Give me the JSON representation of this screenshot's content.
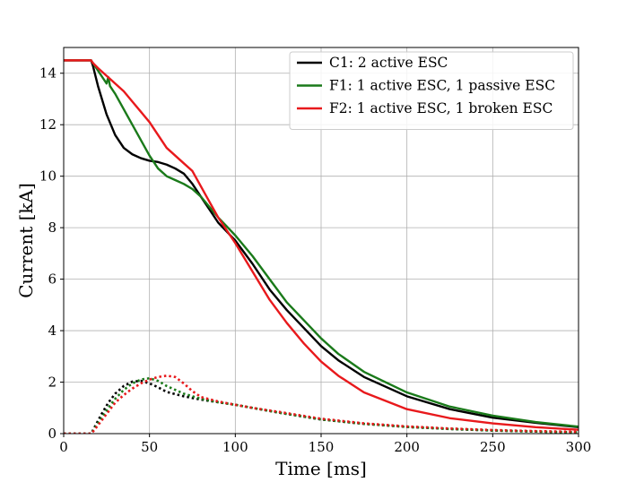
{
  "chart_data": {
    "type": "line",
    "xlabel": "Time [ms]",
    "ylabel": "Current [kA]",
    "xlim": [
      0,
      300
    ],
    "ylim": [
      0,
      15
    ],
    "xticks": [
      "0",
      "50",
      "100",
      "150",
      "200",
      "250",
      "300"
    ],
    "yticks": [
      "0",
      "2",
      "4",
      "6",
      "8",
      "10",
      "12",
      "14"
    ],
    "grid": true,
    "legend_position": "top-right",
    "series": [
      {
        "name": "C1: 2 active ESC",
        "color": "#000000",
        "style": "solid",
        "x": [
          0,
          16,
          17,
          20,
          25,
          30,
          35,
          40,
          45,
          50,
          55,
          60,
          65,
          70,
          75,
          80,
          85,
          90,
          100,
          110,
          120,
          130,
          140,
          150,
          160,
          175,
          200,
          225,
          250,
          275,
          300
        ],
        "y": [
          14.5,
          14.5,
          14.3,
          13.5,
          12.4,
          11.6,
          11.1,
          10.85,
          10.7,
          10.6,
          10.55,
          10.45,
          10.3,
          10.1,
          9.7,
          9.2,
          8.7,
          8.2,
          7.5,
          6.6,
          5.6,
          4.8,
          4.1,
          3.4,
          2.85,
          2.2,
          1.45,
          0.95,
          0.62,
          0.42,
          0.25
        ]
      },
      {
        "name": "F1: 1 active ESC, 1 passive ESC",
        "color": "#1a7a1a",
        "style": "solid",
        "x": [
          0,
          16,
          17,
          20,
          23,
          25,
          26,
          27,
          30,
          35,
          40,
          45,
          50,
          55,
          60,
          65,
          70,
          75,
          80,
          85,
          90,
          100,
          110,
          120,
          130,
          140,
          150,
          160,
          175,
          200,
          225,
          250,
          275,
          300
        ],
        "y": [
          14.5,
          14.5,
          14.4,
          14.1,
          13.8,
          13.6,
          13.85,
          13.5,
          13.2,
          12.6,
          12.0,
          11.4,
          10.8,
          10.3,
          10.0,
          9.85,
          9.7,
          9.5,
          9.2,
          8.8,
          8.4,
          7.7,
          6.9,
          6.0,
          5.1,
          4.4,
          3.7,
          3.1,
          2.4,
          1.6,
          1.05,
          0.7,
          0.45,
          0.27
        ]
      },
      {
        "name": "F2: 1 active ESC, 1 broken ESC",
        "color": "#e8191c",
        "style": "solid",
        "x": [
          0,
          16,
          17,
          20,
          25,
          30,
          35,
          40,
          45,
          50,
          55,
          60,
          65,
          70,
          75,
          80,
          85,
          90,
          100,
          110,
          120,
          130,
          140,
          150,
          160,
          175,
          200,
          225,
          250,
          275,
          300
        ],
        "y": [
          14.5,
          14.5,
          14.4,
          14.2,
          13.9,
          13.6,
          13.3,
          12.9,
          12.5,
          12.1,
          11.6,
          11.1,
          10.8,
          10.5,
          10.2,
          9.6,
          9.0,
          8.4,
          7.4,
          6.3,
          5.2,
          4.3,
          3.5,
          2.8,
          2.25,
          1.6,
          0.95,
          0.6,
          0.4,
          0.25,
          0.15
        ]
      },
      {
        "name": "",
        "color": "#000000",
        "style": "dotted",
        "x": [
          0,
          16,
          18,
          22,
          26,
          30,
          35,
          40,
          45,
          50,
          55,
          60,
          70,
          80,
          90,
          100,
          110,
          125,
          150,
          175,
          200,
          225,
          250,
          275,
          300
        ],
        "y": [
          0,
          0,
          0.25,
          0.75,
          1.2,
          1.55,
          1.85,
          2.02,
          2.05,
          1.95,
          1.8,
          1.62,
          1.45,
          1.32,
          1.22,
          1.12,
          1.0,
          0.82,
          0.55,
          0.38,
          0.26,
          0.18,
          0.12,
          0.08,
          0.05
        ]
      },
      {
        "name": "",
        "color": "#1a7a1a",
        "style": "dotted",
        "x": [
          0,
          16,
          18,
          22,
          26,
          30,
          35,
          40,
          45,
          50,
          55,
          60,
          70,
          80,
          90,
          100,
          110,
          125,
          150,
          175,
          200,
          225,
          250,
          275,
          300
        ],
        "y": [
          0,
          0,
          0.2,
          0.6,
          1.0,
          1.35,
          1.7,
          1.95,
          2.1,
          2.15,
          2.05,
          1.85,
          1.55,
          1.35,
          1.22,
          1.12,
          1.0,
          0.82,
          0.55,
          0.38,
          0.26,
          0.18,
          0.12,
          0.08,
          0.05
        ]
      },
      {
        "name": "",
        "color": "#e8191c",
        "style": "dotted",
        "x": [
          0,
          16,
          18,
          22,
          26,
          30,
          35,
          40,
          45,
          50,
          55,
          60,
          65,
          70,
          75,
          80,
          90,
          100,
          110,
          125,
          150,
          175,
          200,
          225,
          250,
          275,
          300
        ],
        "y": [
          0,
          0,
          0.15,
          0.5,
          0.85,
          1.2,
          1.5,
          1.75,
          1.95,
          2.1,
          2.2,
          2.25,
          2.2,
          1.95,
          1.65,
          1.42,
          1.25,
          1.12,
          1.0,
          0.85,
          0.58,
          0.4,
          0.28,
          0.2,
          0.14,
          0.1,
          0.07
        ]
      }
    ]
  }
}
